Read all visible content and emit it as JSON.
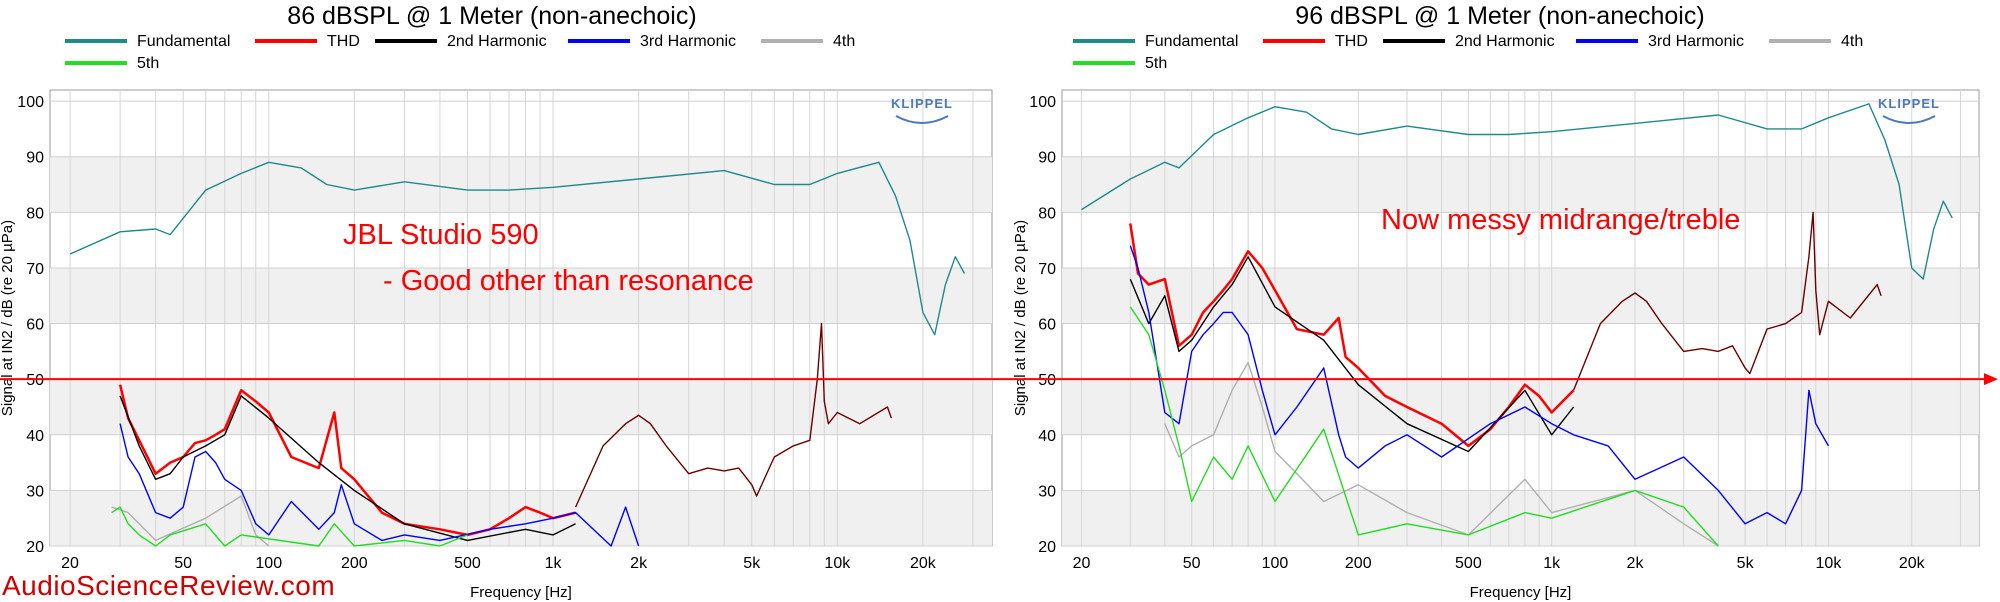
{
  "watermark": "AudioScienceReview.com",
  "reference_line": {
    "value": 50,
    "color": "#ff0000"
  },
  "colors": {
    "fundamental": "#1f8a8a",
    "thd": "#ff0000",
    "h2": "#000000",
    "h3": "#0000ff",
    "h4": "#b0b0b0",
    "h5": "#22dd22",
    "dark": "#6b0000"
  },
  "chart_data": [
    {
      "type": "line",
      "title": "86 dBSPL @ 1 Meter (non-anechoic)",
      "xlabel": "Frequency [Hz]",
      "ylabel": "Signal at IN2 / dB (re 20 µPa)",
      "xscale": "log",
      "xlim": [
        17,
        35000
      ],
      "ylim": [
        20,
        102
      ],
      "xticks": [
        "20",
        "50",
        "100",
        "200",
        "500",
        "1k",
        "2k",
        "5k",
        "10k",
        "20k"
      ],
      "yticks": [
        "20",
        "30",
        "40",
        "50",
        "60",
        "70",
        "80",
        "90",
        "100"
      ],
      "grid": true,
      "legend": [
        "Fundamental",
        "THD",
        "2nd Harmonic",
        "3rd Harmonic",
        "4th",
        "5th"
      ],
      "legend_position": "top",
      "annotations": [
        "JBL Studio 590",
        "- Good other than resonance"
      ],
      "logo": "KLIPPEL",
      "series": [
        {
          "name": "Fundamental",
          "color_key": "fundamental",
          "x": [
            20,
            30,
            40,
            45,
            60,
            80,
            100,
            130,
            160,
            200,
            300,
            500,
            700,
            1000,
            2000,
            4000,
            6000,
            8000,
            10000,
            14000,
            16000,
            18000,
            20000,
            22000,
            24000,
            26000,
            28000
          ],
          "y": [
            72.5,
            76.5,
            77,
            76,
            84,
            87,
            89,
            88,
            85,
            84,
            85.5,
            84,
            84,
            84.5,
            86,
            87.5,
            85,
            85,
            87,
            89,
            83,
            75,
            62,
            58,
            67,
            72,
            69
          ]
        },
        {
          "name": "THD",
          "color_key": "thd",
          "x": [
            30,
            32,
            35,
            40,
            45,
            50,
            55,
            60,
            65,
            70,
            80,
            90,
            100,
            120,
            150,
            170,
            180,
            200,
            250,
            300,
            400,
            500,
            600,
            700,
            800,
            900,
            1000,
            1200
          ],
          "y": [
            49,
            43,
            39,
            33,
            35,
            36,
            38.5,
            39,
            40,
            41,
            48,
            46,
            44,
            36,
            34,
            44,
            34,
            32,
            26,
            24,
            23,
            22,
            23,
            25,
            27,
            26,
            25,
            26
          ]
        },
        {
          "name": "2nd Harmonic",
          "color_key": "h2",
          "x": [
            30,
            35,
            40,
            45,
            50,
            60,
            70,
            80,
            100,
            150,
            200,
            300,
            500,
            800,
            1000,
            1200
          ],
          "y": [
            47,
            38,
            32,
            33,
            36,
            38,
            40,
            47,
            43,
            35,
            30,
            24,
            21,
            23,
            22,
            24
          ]
        },
        {
          "name": "3rd Harmonic",
          "color_key": "h3",
          "x": [
            30,
            32,
            35,
            40,
            45,
            50,
            55,
            60,
            65,
            70,
            80,
            90,
            100,
            120,
            150,
            170,
            180,
            200,
            250,
            300,
            400,
            600,
            800,
            1000,
            1200,
            1600,
            1800,
            2000
          ],
          "y": [
            42,
            36,
            33,
            26,
            25,
            27,
            36,
            37,
            35,
            32,
            30,
            24,
            22,
            28,
            23,
            26,
            31,
            24,
            21,
            22,
            21,
            23,
            24,
            25,
            26,
            20,
            27,
            20
          ]
        },
        {
          "name": "4th",
          "color_key": "h4",
          "x": [
            28,
            30,
            32,
            35,
            40,
            60,
            80,
            90,
            100
          ],
          "y": [
            27,
            26.5,
            26,
            24,
            21,
            25,
            29,
            22,
            20
          ]
        },
        {
          "name": "5th",
          "color_key": "h5",
          "x": [
            28,
            30,
            32,
            35,
            40,
            45,
            60,
            70,
            80,
            150,
            170,
            200,
            300,
            400,
            500
          ],
          "y": [
            26,
            27,
            24,
            22,
            20,
            22,
            24,
            20,
            22,
            20,
            24,
            20,
            21,
            20,
            22
          ]
        },
        {
          "name": "",
          "color_key": "dark",
          "x": [
            1200,
            1500,
            1800,
            2000,
            2200,
            2500,
            3000,
            3500,
            4000,
            4500,
            5000,
            5200,
            6000,
            7000,
            8000,
            8500,
            8800,
            9000,
            9300,
            10000,
            12000,
            15000,
            15500
          ],
          "y": [
            27,
            38,
            42,
            43.5,
            42,
            38,
            33,
            34,
            33.5,
            34,
            31,
            29,
            36,
            38,
            39,
            50,
            60,
            46,
            42,
            44,
            42,
            45,
            43
          ]
        }
      ]
    },
    {
      "type": "line",
      "title": "96 dBSPL @ 1 Meter (non-anechoic)",
      "xlabel": "Frequency [Hz]",
      "ylabel": "Signal at IN2 / dB (re 20 µPa)",
      "xscale": "log",
      "xlim": [
        17,
        35000
      ],
      "ylim": [
        20,
        102
      ],
      "xticks": [
        "20",
        "50",
        "100",
        "200",
        "500",
        "1k",
        "2k",
        "5k",
        "10k",
        "20k"
      ],
      "yticks": [
        "20",
        "30",
        "40",
        "50",
        "60",
        "70",
        "80",
        "90",
        "100"
      ],
      "grid": true,
      "legend": [
        "Fundamental",
        "THD",
        "2nd Harmonic",
        "3rd Harmonic",
        "4th",
        "5th"
      ],
      "legend_position": "top",
      "annotations": [
        "Now messy midrange/treble"
      ],
      "logo": "KLIPPEL",
      "series": [
        {
          "name": "Fundamental",
          "color_key": "fundamental",
          "x": [
            20,
            30,
            40,
            45,
            60,
            80,
            100,
            130,
            160,
            200,
            300,
            500,
            700,
            1000,
            2000,
            4000,
            6000,
            8000,
            10000,
            14000,
            16000,
            18000,
            20000,
            22000,
            24000,
            26000,
            28000
          ],
          "y": [
            80.5,
            86,
            89,
            88,
            94,
            97,
            99,
            98,
            95,
            94,
            95.5,
            94,
            94,
            94.5,
            96,
            97.5,
            95,
            95,
            97,
            99.5,
            93,
            85,
            70,
            68,
            77,
            82,
            79
          ]
        },
        {
          "name": "THD",
          "color_key": "thd",
          "x": [
            30,
            32,
            35,
            40,
            45,
            50,
            55,
            60,
            65,
            70,
            80,
            90,
            100,
            120,
            150,
            170,
            180,
            200,
            250,
            300,
            400,
            500,
            600,
            700,
            800,
            900,
            1000,
            1200
          ],
          "y": [
            78,
            69,
            67,
            68,
            56,
            58,
            62,
            64,
            66,
            68,
            73,
            70,
            66,
            59,
            58,
            61,
            54,
            52,
            47,
            45,
            42,
            38,
            41,
            45,
            49,
            47,
            44,
            48
          ]
        },
        {
          "name": "2nd Harmonic",
          "color_key": "h2",
          "x": [
            30,
            35,
            40,
            45,
            50,
            60,
            70,
            80,
            100,
            150,
            200,
            300,
            500,
            800,
            1000,
            1200
          ],
          "y": [
            68,
            60,
            65,
            55,
            57,
            63,
            67,
            72,
            63,
            57,
            49,
            42,
            37,
            48,
            40,
            45
          ]
        },
        {
          "name": "3rd Harmonic",
          "color_key": "h3",
          "x": [
            30,
            32,
            35,
            40,
            45,
            50,
            55,
            60,
            65,
            70,
            80,
            90,
            100,
            120,
            150,
            170,
            180,
            200,
            250,
            300,
            400,
            600,
            800,
            1000,
            1200,
            1600,
            2000,
            3000,
            4000,
            5000,
            6000,
            7000,
            8000,
            8500,
            9000,
            10000
          ],
          "y": [
            74,
            70,
            62,
            44,
            42,
            55,
            58,
            60,
            62,
            62,
            58,
            48,
            40,
            45,
            52,
            40,
            36,
            34,
            38,
            40,
            36,
            42,
            45,
            42,
            40,
            38,
            32,
            36,
            30,
            24,
            26,
            24,
            30,
            48,
            42,
            38
          ]
        },
        {
          "name": "4th",
          "color_key": "h4",
          "x": [
            40,
            45,
            50,
            60,
            70,
            80,
            90,
            100,
            120,
            150,
            200,
            300,
            500,
            800,
            1000,
            2000,
            3000,
            4000
          ],
          "y": [
            42,
            36,
            38,
            40,
            48,
            53,
            45,
            37,
            33,
            28,
            31,
            26,
            22,
            32,
            26,
            30,
            24,
            20
          ]
        },
        {
          "name": "5th",
          "color_key": "h5",
          "x": [
            30,
            35,
            40,
            45,
            50,
            60,
            70,
            80,
            100,
            150,
            200,
            300,
            500,
            800,
            1000,
            2000,
            3000,
            4000
          ],
          "y": [
            63,
            58,
            48,
            38,
            28,
            36,
            32,
            38,
            28,
            41,
            22,
            24,
            22,
            26,
            25,
            30,
            27,
            20
          ]
        },
        {
          "name": "",
          "color_key": "dark",
          "x": [
            1200,
            1500,
            1800,
            2000,
            2200,
            2500,
            3000,
            3500,
            4000,
            4500,
            5000,
            5200,
            6000,
            7000,
            8000,
            8500,
            8800,
            9000,
            9300,
            10000,
            12000,
            15000,
            15500
          ],
          "y": [
            48,
            60,
            64,
            65.5,
            64,
            60,
            55,
            55.5,
            55,
            56,
            52,
            51,
            59,
            60,
            62,
            72,
            80,
            66,
            58,
            64,
            61,
            67,
            65
          ]
        }
      ]
    }
  ]
}
